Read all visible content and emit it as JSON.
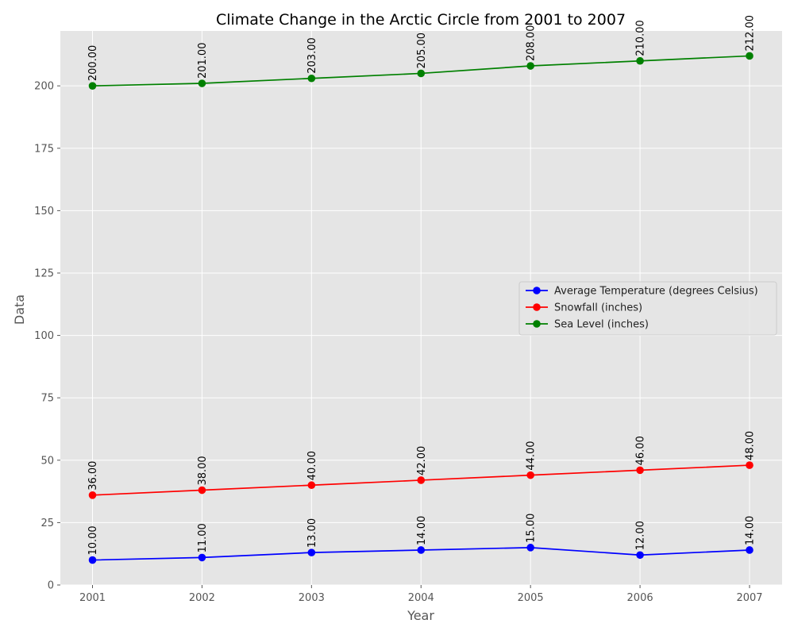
{
  "chart_data": {
    "type": "line",
    "title": "Climate Change in the Arctic Circle from 2001 to 2007",
    "xlabel": "Year",
    "ylabel": "Data",
    "categories": [
      "2001",
      "2002",
      "2003",
      "2004",
      "2005",
      "2006",
      "2007"
    ],
    "x_ticks": [
      "2001",
      "2002",
      "2003",
      "2004",
      "2005",
      "2006",
      "2007"
    ],
    "ylim": [
      0,
      222
    ],
    "y_ticks": [
      0,
      25,
      50,
      75,
      100,
      125,
      150,
      175,
      200
    ],
    "grid": true,
    "legend_position": "center-right",
    "value_label_format": "2 decimals, rotated vertical",
    "series": [
      {
        "name": "Average Temperature (degrees Celsius)",
        "color": "#0000ff",
        "values": [
          10,
          11,
          13,
          14,
          15,
          12,
          14
        ],
        "labels": [
          "10.00",
          "11.00",
          "13.00",
          "14.00",
          "15.00",
          "12.00",
          "14.00"
        ]
      },
      {
        "name": "Snowfall (inches)",
        "color": "#ff0000",
        "values": [
          36,
          38,
          40,
          42,
          44,
          46,
          48
        ],
        "labels": [
          "36.00",
          "38.00",
          "40.00",
          "42.00",
          "44.00",
          "46.00",
          "48.00"
        ]
      },
      {
        "name": "Sea Level (inches)",
        "color": "#008000",
        "values": [
          200,
          201,
          203,
          205,
          208,
          210,
          212
        ],
        "labels": [
          "200.00",
          "201.00",
          "203.00",
          "205.00",
          "208.00",
          "210.00",
          "212.00"
        ]
      }
    ]
  }
}
